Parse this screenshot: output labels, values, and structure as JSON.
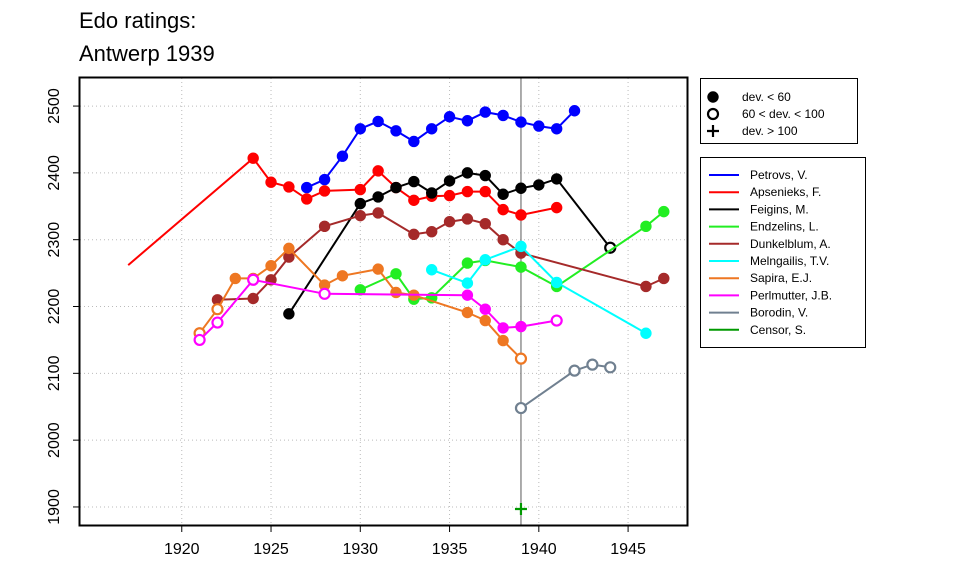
{
  "chart_data": {
    "type": "line",
    "title": [
      "Edo ratings:",
      "Antwerp 1939"
    ],
    "xlabel": "",
    "ylabel": "",
    "xlim": [
      1914.3,
      1948.3
    ],
    "ylim": [
      1873,
      2542
    ],
    "x_ticks": [
      1920,
      1925,
      1930,
      1935,
      1940,
      1945
    ],
    "y_ticks": [
      1900,
      2000,
      2100,
      2200,
      2300,
      2400,
      2500
    ],
    "grid": true,
    "vline_x": 1939,
    "marker_legend": [
      {
        "symbol": "filled",
        "label": "dev. < 60"
      },
      {
        "symbol": "open",
        "label": "60 < dev. < 100"
      },
      {
        "symbol": "plus",
        "label": "dev. > 100"
      }
    ],
    "series": [
      {
        "name": "Petrovs, V.",
        "color": "#0000ff",
        "points": [
          [
            1927,
            2378,
            "filled"
          ],
          [
            1928,
            2390,
            "filled"
          ],
          [
            1929,
            2425,
            "filled"
          ],
          [
            1930,
            2466,
            "filled"
          ],
          [
            1931,
            2477,
            "filled"
          ],
          [
            1932,
            2463,
            "filled"
          ],
          [
            1933,
            2447,
            "filled"
          ],
          [
            1934,
            2466,
            "filled"
          ],
          [
            1935,
            2484,
            "filled"
          ],
          [
            1936,
            2478,
            "filled"
          ],
          [
            1937,
            2491,
            "filled"
          ],
          [
            1938,
            2486,
            "filled"
          ],
          [
            1939,
            2476,
            "filled"
          ],
          [
            1940,
            2470,
            "filled"
          ],
          [
            1941,
            2466,
            "filled"
          ],
          [
            1942,
            2493,
            "filled"
          ]
        ]
      },
      {
        "name": "Apsenieks, F.",
        "color": "#ff0000",
        "points": [
          [
            1917,
            2262,
            "none"
          ],
          [
            1924,
            2422,
            "filled"
          ],
          [
            1925,
            2386,
            "filled"
          ],
          [
            1926,
            2379,
            "filled"
          ],
          [
            1927,
            2361,
            "filled"
          ],
          [
            1928,
            2373,
            "filled"
          ],
          [
            1930,
            2375,
            "filled"
          ],
          [
            1931,
            2403,
            "filled"
          ],
          [
            1932,
            2378,
            "filled"
          ],
          [
            1933,
            2359,
            "filled"
          ],
          [
            1934,
            2365,
            "filled"
          ],
          [
            1935,
            2366,
            "filled"
          ],
          [
            1936,
            2372,
            "filled"
          ],
          [
            1937,
            2372,
            "filled"
          ],
          [
            1938,
            2345,
            "filled"
          ],
          [
            1939,
            2337,
            "filled"
          ],
          [
            1941,
            2348,
            "filled"
          ]
        ]
      },
      {
        "name": "Feigins, M.",
        "color": "#000000",
        "points": [
          [
            1926,
            2189,
            "filled"
          ],
          [
            1930,
            2354,
            "filled"
          ],
          [
            1931,
            2364,
            "filled"
          ],
          [
            1932,
            2378,
            "filled"
          ],
          [
            1933,
            2387,
            "filled"
          ],
          [
            1934,
            2370,
            "filled"
          ],
          [
            1935,
            2388,
            "filled"
          ],
          [
            1936,
            2400,
            "filled"
          ],
          [
            1937,
            2396,
            "filled"
          ],
          [
            1938,
            2368,
            "filled"
          ],
          [
            1939,
            2377,
            "filled"
          ],
          [
            1940,
            2382,
            "filled"
          ],
          [
            1941,
            2391,
            "filled"
          ],
          [
            1944,
            2288,
            "open"
          ]
        ]
      },
      {
        "name": "Endzelins, L.",
        "color": "#22ee22",
        "points": [
          [
            1930,
            2225,
            "filled"
          ],
          [
            1932,
            2249,
            "filled"
          ],
          [
            1933,
            2211,
            "filled"
          ],
          [
            1934,
            2213,
            "filled"
          ],
          [
            1936,
            2265,
            "filled"
          ],
          [
            1937,
            2269,
            "filled"
          ],
          [
            1939,
            2259,
            "filled"
          ],
          [
            1941,
            2230,
            "filled"
          ],
          [
            1946,
            2320,
            "filled"
          ],
          [
            1947,
            2342,
            "filled"
          ]
        ]
      },
      {
        "name": "Dunkelblum, A.",
        "color": "#a52a2a",
        "points": [
          [
            1922,
            2210,
            "filled"
          ],
          [
            1924,
            2212,
            "filled"
          ],
          [
            1925,
            2240,
            "filled"
          ],
          [
            1926,
            2274,
            "filled"
          ],
          [
            1928,
            2320,
            "filled"
          ],
          [
            1930,
            2336,
            "filled"
          ],
          [
            1931,
            2340,
            "filled"
          ],
          [
            1933,
            2308,
            "filled"
          ],
          [
            1934,
            2312,
            "filled"
          ],
          [
            1935,
            2327,
            "filled"
          ],
          [
            1936,
            2331,
            "filled"
          ],
          [
            1937,
            2324,
            "filled"
          ],
          [
            1938,
            2300,
            "filled"
          ],
          [
            1939,
            2280,
            "filled"
          ],
          [
            1946,
            2230,
            "filled"
          ],
          [
            1947,
            2242,
            "filled"
          ]
        ]
      },
      {
        "name": "Melngailis, T.V.",
        "color": "#00ffff",
        "points": [
          [
            1934,
            2255,
            "filled"
          ],
          [
            1936,
            2235,
            "filled"
          ],
          [
            1937,
            2270,
            "filled"
          ],
          [
            1939,
            2290,
            "filled"
          ],
          [
            1941,
            2236,
            "filled"
          ],
          [
            1946,
            2160,
            "filled"
          ]
        ]
      },
      {
        "name": "Sapira, E.J.",
        "color": "#ee7722",
        "points": [
          [
            1921,
            2160,
            "open"
          ],
          [
            1922,
            2196,
            "open"
          ],
          [
            1923,
            2242,
            "filled"
          ],
          [
            1924,
            2242,
            "filled"
          ],
          [
            1925,
            2261,
            "filled"
          ],
          [
            1926,
            2287,
            "filled"
          ],
          [
            1928,
            2232,
            "filled"
          ],
          [
            1929,
            2246,
            "filled"
          ],
          [
            1931,
            2256,
            "filled"
          ],
          [
            1932,
            2221,
            "filled"
          ],
          [
            1933,
            2217,
            "filled"
          ],
          [
            1936,
            2191,
            "filled"
          ],
          [
            1937,
            2179,
            "filled"
          ],
          [
            1938,
            2149,
            "filled"
          ],
          [
            1939,
            2122,
            "open"
          ]
        ]
      },
      {
        "name": "Perlmutter, J.B.",
        "color": "#ff00ff",
        "points": [
          [
            1921,
            2150,
            "open"
          ],
          [
            1922,
            2176,
            "open"
          ],
          [
            1924,
            2240,
            "open"
          ],
          [
            1928,
            2219,
            "open"
          ],
          [
            1936,
            2217,
            "filled"
          ],
          [
            1937,
            2196,
            "filled"
          ],
          [
            1938,
            2168,
            "filled"
          ],
          [
            1939,
            2170,
            "filled"
          ],
          [
            1941,
            2179,
            "open"
          ]
        ]
      },
      {
        "name": "Borodin, V.",
        "color": "#708090",
        "points": [
          [
            1939,
            2048,
            "open"
          ],
          [
            1942,
            2104,
            "open"
          ],
          [
            1943,
            2113,
            "open"
          ],
          [
            1944,
            2109,
            "open"
          ]
        ]
      },
      {
        "name": "Censor, S.",
        "color": "#009900",
        "points": [
          [
            1939,
            1897,
            "plus"
          ]
        ]
      }
    ]
  }
}
